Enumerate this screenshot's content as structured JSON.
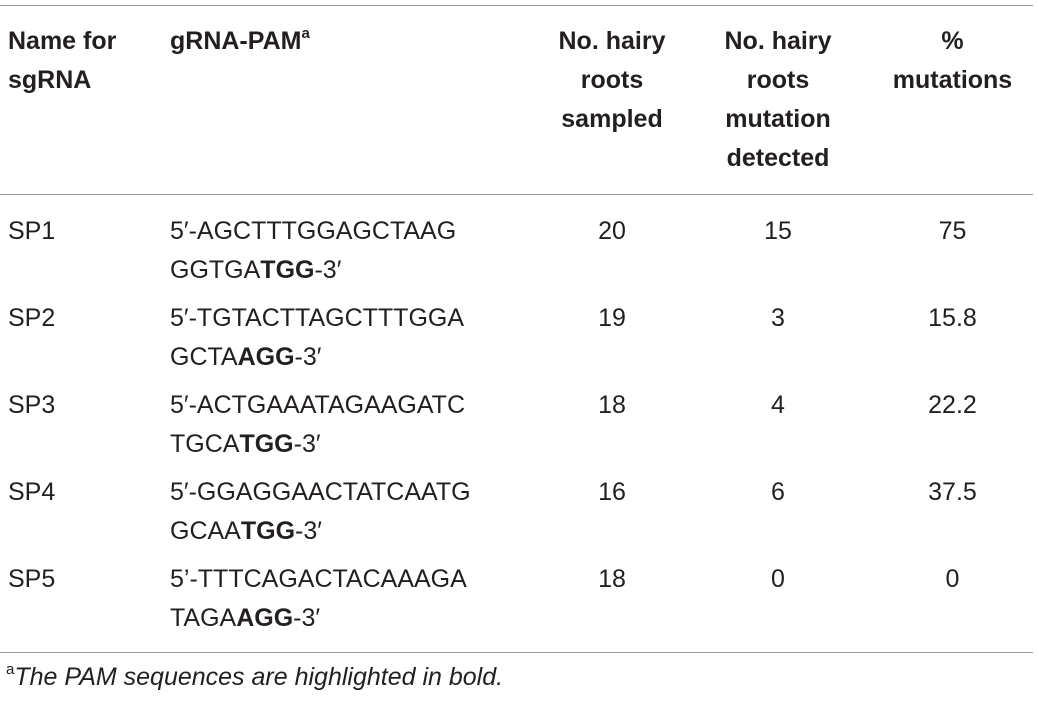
{
  "table": {
    "headers": [
      "Name for sgRNA",
      "gRNA-PAM",
      "No. hairy roots sampled",
      "No. hairy roots mutation detected",
      "% mutations"
    ],
    "header_superscript": "a",
    "rows": [
      {
        "name": "SP1",
        "seq_line1": "5′-AGCTTTGGAGCTAAG",
        "seq_line2": "GGTGA",
        "pam": "TGG",
        "seq_end": "-3′",
        "sampled": 20,
        "detected": 15,
        "percent": 75
      },
      {
        "name": "SP2",
        "seq_line1": "5′-TGTACTTAGCTTTGGA",
        "seq_line2": "GCTA",
        "pam": "AGG",
        "seq_end": "-3′",
        "sampled": 19,
        "detected": 3,
        "percent": 15.8
      },
      {
        "name": "SP3",
        "seq_line1": "5′-ACTGAAATAGAAGATC",
        "seq_line2": "TGCA",
        "pam": "TGG",
        "seq_end": "-3′",
        "sampled": 18,
        "detected": 4,
        "percent": 22.2
      },
      {
        "name": "SP4",
        "seq_line1": "5′-GGAGGAACTATCAATG",
        "seq_line2": "GCAA",
        "pam": "TGG",
        "seq_end": "-3′",
        "sampled": 16,
        "detected": 6,
        "percent": 37.5
      },
      {
        "name": "SP5",
        "seq_line1": "5’-TTTCAGACTACAAAGA",
        "seq_line2": "TAGA",
        "pam": "AGG",
        "seq_end": "-3′",
        "sampled": 18,
        "detected": 0,
        "percent": 0
      }
    ]
  },
  "footnote": {
    "marker": "a",
    "text": "The PAM sequences are highlighted in bold."
  }
}
